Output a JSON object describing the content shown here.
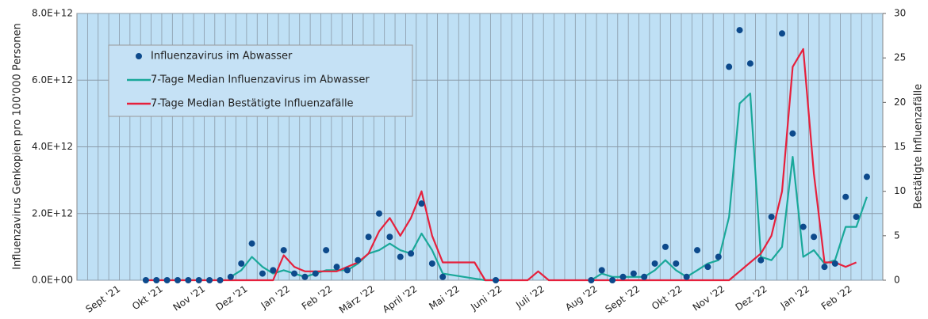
{
  "chart_data": {
    "type": "combo",
    "y_label": "Influenzavirus Genkopien pro 100'000 Personen",
    "y2_label": "Bestätigte Influenzafälle",
    "categories": [
      null,
      null,
      null,
      "Sept '21",
      null,
      null,
      null,
      "Okt '21",
      null,
      null,
      null,
      "Nov '21",
      null,
      null,
      null,
      "Dez '21",
      null,
      null,
      null,
      "Jan '22",
      null,
      null,
      null,
      "Feb '22",
      null,
      null,
      null,
      "März '22",
      null,
      null,
      null,
      "April '22",
      null,
      null,
      null,
      "Mai '22",
      null,
      null,
      null,
      "Juni '22",
      null,
      null,
      null,
      "Juli '22",
      null,
      null,
      null,
      null,
      "Aug '22",
      null,
      null,
      null,
      "Sept '22",
      null,
      null,
      null,
      "Okt '22",
      null,
      null,
      null,
      "Nov '22",
      null,
      null,
      null,
      "Dez '22",
      null,
      null,
      null,
      "Jan '22",
      null,
      null,
      null,
      "Feb '22",
      null,
      null,
      null
    ],
    "series": [
      {
        "name": "Influenzavirus im Abwasser",
        "type": "scatter",
        "axis": "y",
        "color": "#0d4a8c",
        "values": [
          null,
          null,
          null,
          null,
          null,
          null,
          0,
          0,
          0,
          0,
          0,
          0,
          0,
          0,
          100000000000.0,
          500000000000.0,
          1100000000000.0,
          200000000000.0,
          300000000000.0,
          900000000000.0,
          200000000000.0,
          100000000000.0,
          200000000000.0,
          900000000000.0,
          400000000000.0,
          300000000000.0,
          600000000000.0,
          1300000000000.0,
          2000000000000.0,
          1300000000000.0,
          700000000000.0,
          800000000000.0,
          2300000000000.0,
          500000000000.0,
          100000000000.0,
          null,
          null,
          null,
          null,
          0,
          null,
          null,
          null,
          null,
          null,
          null,
          null,
          null,
          0,
          300000000000.0,
          0,
          100000000000.0,
          200000000000.0,
          100000000000.0,
          500000000000.0,
          1000000000000.0,
          500000000000.0,
          100000000000.0,
          900000000000.0,
          400000000000.0,
          700000000000.0,
          6400000000000.0,
          7500000000000.0,
          6500000000000.0,
          600000000000.0,
          1900000000000.0,
          7400000000000.0,
          4400000000000.0,
          1600000000000.0,
          1300000000000.0,
          400000000000.0,
          500000000000.0,
          2500000000000.0,
          1900000000000.0,
          3100000000000.0,
          null
        ]
      },
      {
        "name": "7-Tage Median Influenzavirus im Abwasser",
        "type": "line",
        "axis": "y",
        "color": "#1aa89a",
        "values": [
          null,
          null,
          null,
          null,
          null,
          null,
          null,
          null,
          null,
          null,
          null,
          null,
          null,
          null,
          100000000000.0,
          300000000000.0,
          700000000000.0,
          400000000000.0,
          200000000000.0,
          300000000000.0,
          200000000000.0,
          100000000000.0,
          200000000000.0,
          300000000000.0,
          300000000000.0,
          300000000000.0,
          500000000000.0,
          800000000000.0,
          900000000000.0,
          1100000000000.0,
          900000000000.0,
          800000000000.0,
          1400000000000.0,
          900000000000.0,
          200000000000.0,
          150000000000.0,
          100000000000.0,
          50000000000.0,
          0,
          0,
          null,
          null,
          null,
          null,
          null,
          null,
          null,
          null,
          0,
          200000000000.0,
          100000000000.0,
          100000000000.0,
          100000000000.0,
          100000000000.0,
          300000000000.0,
          600000000000.0,
          300000000000.0,
          100000000000.0,
          300000000000.0,
          500000000000.0,
          600000000000.0,
          1900000000000.0,
          5300000000000.0,
          5600000000000.0,
          700000000000.0,
          600000000000.0,
          1000000000000.0,
          3700000000000.0,
          700000000000.0,
          900000000000.0,
          500000000000.0,
          600000000000.0,
          1600000000000.0,
          1600000000000.0,
          2500000000000.0,
          null
        ]
      },
      {
        "name": "7-Tage Median Bestätigte Influenzafälle",
        "type": "line",
        "axis": "y2",
        "color": "#e6203c",
        "values": [
          null,
          null,
          null,
          null,
          null,
          null,
          0,
          0,
          0,
          0,
          0,
          0,
          0,
          0,
          0,
          0,
          0,
          0,
          0,
          2.8,
          1.5,
          1,
          1,
          1,
          1,
          1.5,
          2,
          3,
          5.5,
          7,
          5,
          7,
          10,
          5,
          2,
          2,
          2,
          2,
          0,
          0,
          0,
          0,
          0,
          1,
          0,
          0,
          0,
          0,
          0,
          0,
          0,
          0,
          0,
          0,
          0,
          0,
          0,
          0,
          0,
          0,
          0,
          0,
          1,
          2,
          3,
          5,
          10,
          24,
          26,
          12,
          2,
          2,
          1.5,
          2,
          null,
          null
        ]
      }
    ],
    "ylim": [
      0,
      8000000000000.0
    ],
    "yticks": [
      {
        "value": 0,
        "label": "0.0E+00"
      },
      {
        "value": 2000000000000.0,
        "label": "2.0E+12"
      },
      {
        "value": 4000000000000.0,
        "label": "4.0E+12"
      },
      {
        "value": 6000000000000.0,
        "label": "6.0E+12"
      },
      {
        "value": 8000000000000.0,
        "label": "8.0E+12"
      }
    ],
    "y2lim": [
      0,
      30
    ],
    "y2ticks": [
      0,
      5,
      10,
      15,
      20,
      25,
      30
    ],
    "grid": true,
    "legend": "top-left"
  }
}
